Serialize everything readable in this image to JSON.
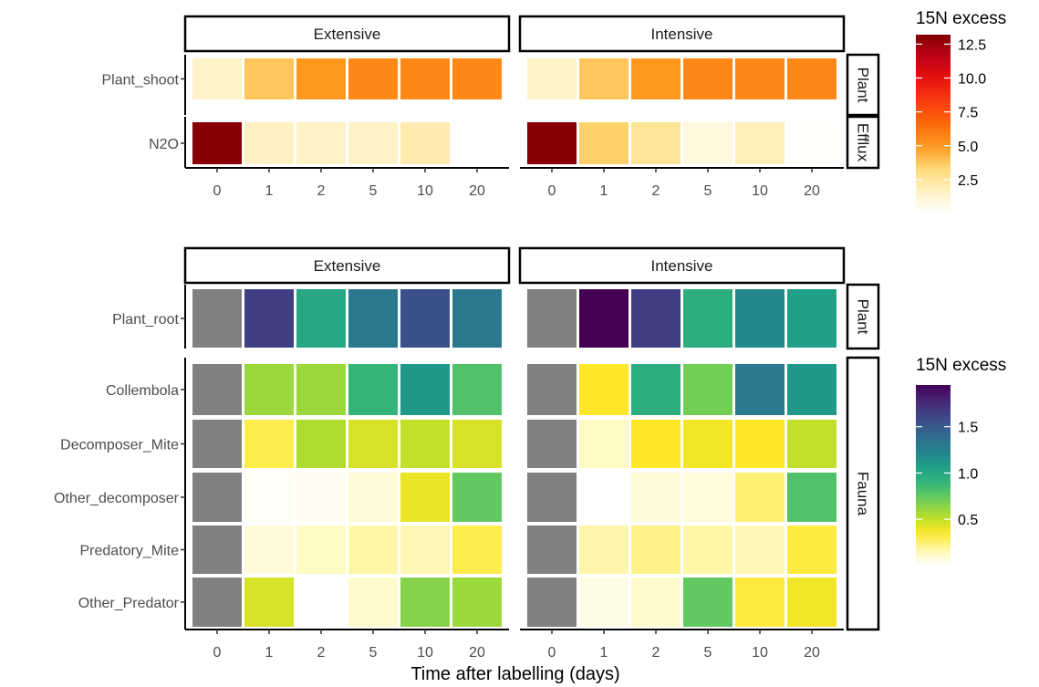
{
  "chart_data": {
    "type": "heatmap",
    "x_title": "Time after labelling (days)",
    "x_categories": [
      "0",
      "1",
      "2",
      "5",
      "10",
      "20"
    ],
    "facet_columns": [
      "Extensive",
      "Intensive"
    ],
    "na_color": "#808080",
    "panels": [
      {
        "name": "top",
        "legend": {
          "title": "15N excess",
          "palette": "YlOrRd",
          "range": [
            0,
            13.2
          ],
          "ticks": [
            2.5,
            5.0,
            7.5,
            10.0,
            12.5
          ],
          "tick_labels": [
            "2.5",
            "5.0",
            "7.5",
            "10.0",
            "12.5"
          ],
          "reversed": false
        },
        "row_strips": [
          {
            "label": "Plant",
            "rows": [
              "Plant_shoot"
            ]
          },
          {
            "label": "Efflux",
            "rows": [
              "N2O"
            ]
          }
        ],
        "rows": [
          "Plant_shoot",
          "N2O"
        ],
        "values": {
          "Extensive": {
            "Plant_shoot": [
              1.5,
              3.8,
              5.0,
              5.6,
              5.6,
              5.6
            ],
            "N2O": [
              13.0,
              1.7,
              1.6,
              1.6,
              2.1,
              null
            ]
          },
          "Intensive": {
            "Plant_shoot": [
              1.5,
              3.8,
              5.0,
              5.6,
              5.6,
              5.6
            ],
            "N2O": [
              13.0,
              3.5,
              2.6,
              0.9,
              1.9,
              0.1
            ]
          }
        }
      },
      {
        "name": "bottom",
        "legend": {
          "title": "15N excess",
          "palette": "viridis",
          "range": [
            0,
            1.95
          ],
          "ticks": [
            0.5,
            1.0,
            1.5
          ],
          "tick_labels": [
            "0.5",
            "1.0",
            "1.5"
          ],
          "reversed": true
        },
        "row_strips": [
          {
            "label": "Plant",
            "rows": [
              "Plant_root"
            ]
          },
          {
            "label": "Fauna",
            "rows": [
              "Collembola",
              "Decomposer_Mite",
              "Other_decomposer",
              "Predatory_Mite",
              "Other_Predator"
            ]
          }
        ],
        "rows": [
          "Plant_root",
          "Collembola",
          "Decomposer_Mite",
          "Other_decomposer",
          "Predatory_Mite",
          "Other_Predator"
        ],
        "values": {
          "Extensive": {
            "Plant_root": [
              null,
              1.65,
              1.0,
              1.3,
              1.55,
              1.3
            ],
            "Collembola": [
              null,
              0.6,
              0.6,
              0.9,
              1.1,
              0.8
            ],
            "Decomposer_Mite": [
              null,
              0.3,
              0.55,
              0.45,
              0.5,
              0.45
            ],
            "Other_decomposer": [
              null,
              0.02,
              0.03,
              0.08,
              0.4,
              0.75
            ],
            "Predatory_Mite": [
              null,
              0.08,
              0.12,
              0.18,
              0.15,
              0.3
            ],
            "Other_Predator": [
              null,
              0.45,
              null,
              0.1,
              0.65,
              0.6
            ]
          },
          "Intensive": {
            "Plant_root": [
              null,
              1.95,
              1.65,
              0.95,
              1.2,
              1.05
            ],
            "Collembola": [
              null,
              0.35,
              0.95,
              0.7,
              1.3,
              1.1
            ],
            "Decomposer_Mite": [
              null,
              0.12,
              0.35,
              0.38,
              0.35,
              0.5
            ],
            "Other_decomposer": [
              null,
              0.0,
              0.08,
              0.07,
              0.25,
              0.8
            ],
            "Predatory_Mite": [
              null,
              0.17,
              0.22,
              0.18,
              0.15,
              0.32
            ],
            "Other_Predator": [
              null,
              0.05,
              0.1,
              0.75,
              0.32,
              0.38
            ]
          }
        }
      }
    ]
  }
}
